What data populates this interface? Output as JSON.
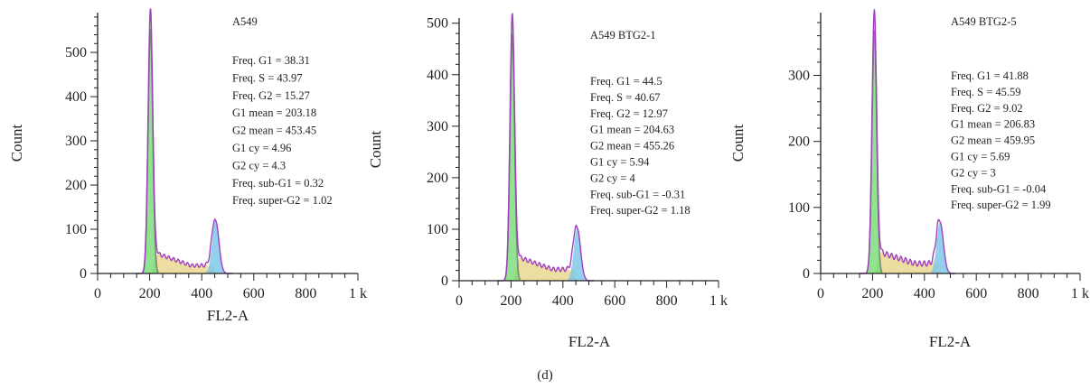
{
  "caption": "(d)",
  "colors": {
    "axis": "#222222",
    "outline": "#a040c0",
    "g1_fill": "#6cd86c",
    "s_fill": "#e8d48a",
    "g2_fill": "#7fc8e8",
    "debris": "#707070"
  },
  "chart_data": [
    {
      "type": "area",
      "sample": "A549",
      "xlabel": "FL2-A",
      "ylabel": "Count",
      "xlim": [
        0,
        1000
      ],
      "ylim": [
        0,
        590
      ],
      "x_ticks": [
        0,
        200,
        400,
        600,
        800,
        1000
      ],
      "x_tick_labels": [
        "0",
        "200",
        "400",
        "600",
        "800",
        "1 k"
      ],
      "y_ticks": [
        0,
        100,
        200,
        300,
        400,
        500
      ],
      "y_tick_labels": [
        "0",
        "100",
        "200",
        "300",
        "400",
        "500"
      ],
      "peaks": {
        "g1_x": 203,
        "g1_y": 600,
        "s_level_start": 50,
        "s_level_end": 18,
        "g2_x": 453,
        "g2_y": 120
      },
      "stats": [
        "Freq. G1 = 38.31",
        "Freq. S = 43.97",
        "Freq. G2 = 15.27",
        "G1 mean = 203.18",
        "G2 mean = 453.45",
        "G1 cy = 4.96",
        "G2 cy = 4.3",
        "Freq. sub-G1 = 0.32",
        "Freq. super-G2 = 1.02"
      ]
    },
    {
      "type": "area",
      "sample": "A549 BTG2-1",
      "xlabel": "FL2-A",
      "ylabel": "Count",
      "xlim": [
        0,
        1000
      ],
      "ylim": [
        0,
        510
      ],
      "x_ticks": [
        0,
        200,
        400,
        600,
        800,
        1000
      ],
      "x_tick_labels": [
        "0",
        "200",
        "400",
        "600",
        "800",
        "1 k"
      ],
      "y_ticks": [
        0,
        100,
        200,
        300,
        400,
        500
      ],
      "y_tick_labels": [
        "0",
        "100",
        "200",
        "300",
        "400",
        "500"
      ],
      "peaks": {
        "g1_x": 205,
        "g1_y": 520,
        "s_level_start": 50,
        "s_level_end": 22,
        "g2_x": 455,
        "g2_y": 102
      },
      "stats": [
        "Freq. G1 = 44.5",
        "Freq. S = 40.67",
        "Freq. G2 = 12.97",
        "G1 mean = 204.63",
        "G2 mean = 455.26",
        "G1 cy = 5.94",
        "G2 cy = 4",
        "Freq. sub-G1 = -0.31",
        "Freq. super-G2 = 1.18"
      ]
    },
    {
      "type": "area",
      "sample": "A549 BTG2-5",
      "xlabel": "FL2-A",
      "ylabel": "Count",
      "xlim": [
        0,
        1000
      ],
      "ylim": [
        0,
        395
      ],
      "x_ticks": [
        0,
        200,
        400,
        600,
        800,
        1000
      ],
      "x_tick_labels": [
        "0",
        "200",
        "400",
        "600",
        "800",
        "1 k"
      ],
      "y_ticks": [
        0,
        100,
        200,
        300
      ],
      "y_tick_labels": [
        "0",
        "100",
        "200",
        "300"
      ],
      "peaks": {
        "g1_x": 207,
        "g1_y": 400,
        "s_level_start": 35,
        "s_level_end": 15,
        "g2_x": 460,
        "g2_y": 78
      },
      "stats": [
        "Freq. G1 = 41.88",
        "Freq. S = 45.59",
        "Freq. G2 = 9.02",
        "G1 mean = 206.83",
        "G2 mean = 459.95",
        "G1 cy = 5.69",
        "G2 cy = 3",
        "Freq. sub-G1 = -0.04",
        "Freq. super-G2 = 1.99"
      ]
    }
  ]
}
